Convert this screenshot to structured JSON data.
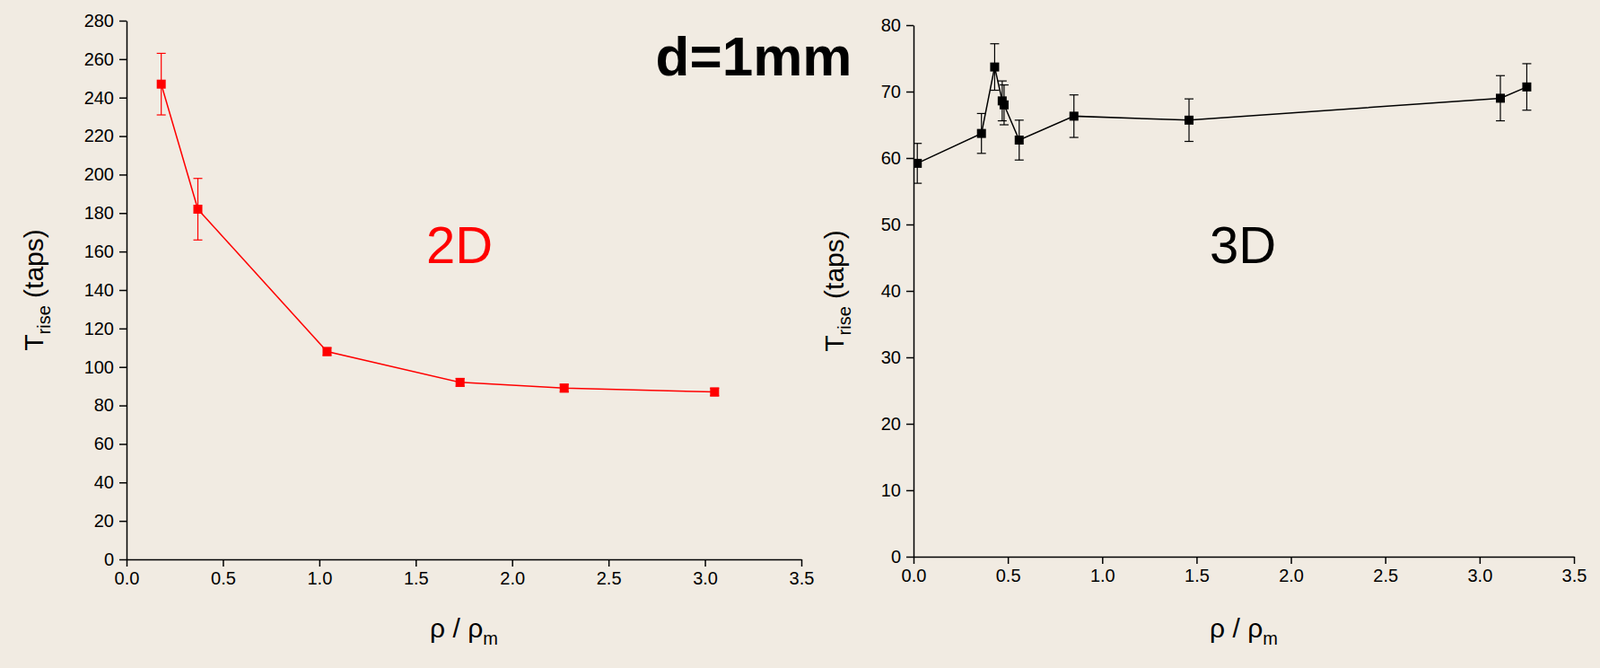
{
  "title": "d=1mm",
  "chart_data": [
    {
      "type": "line",
      "title": "2D",
      "xlabel": [
        {
          "text": "ρ / ρ"
        },
        {
          "text": "m",
          "sub": true
        }
      ],
      "ylabel": [
        {
          "text": "T"
        },
        {
          "text": "rise",
          "sub": true
        },
        {
          "text": " (taps)"
        }
      ],
      "x": [
        0.18,
        0.37,
        1.04,
        1.73,
        2.27,
        3.05
      ],
      "series": [
        {
          "color": "#ff0000",
          "marker": "square",
          "line_style": "solid",
          "values": [
            247,
            182,
            108,
            92,
            89,
            87
          ],
          "errors": [
            16,
            16,
            2,
            2,
            2,
            2
          ]
        }
      ],
      "xlim": [
        0,
        3.5
      ],
      "xticks": [
        {
          "value": 0,
          "label": "0.0"
        },
        0.5,
        {
          "value": 1,
          "label": "1.0"
        },
        1.5,
        {
          "value": 2,
          "label": "2.0"
        },
        2.5,
        {
          "value": 3,
          "label": "3.0"
        },
        3.5
      ],
      "ylim": [
        0,
        280
      ],
      "yticks": [
        0,
        20,
        40,
        60,
        80,
        100,
        120,
        140,
        160,
        180,
        200,
        220,
        240,
        260,
        280
      ],
      "grid": false
    },
    {
      "type": "line",
      "title": "3D",
      "xlabel": [
        {
          "text": "ρ / ρ"
        },
        {
          "text": "m",
          "sub": true
        }
      ],
      "ylabel": [
        {
          "text": "T"
        },
        {
          "text": "rise",
          "sub": true
        },
        {
          "text": " (taps)"
        }
      ],
      "x": [
        0.02,
        0.36,
        0.43,
        0.47,
        0.48,
        0.56,
        0.85,
        1.46,
        3.11,
        3.25
      ],
      "series": [
        {
          "color": "#000000",
          "marker": "square",
          "line_style": "solid",
          "values": [
            59.2,
            63.7,
            73.7,
            68.6,
            68.0,
            62.7,
            66.3,
            65.7,
            69.0,
            70.7
          ],
          "errors": [
            3.0,
            3.0,
            3.5,
            3.0,
            3.0,
            3.0,
            3.2,
            3.2,
            3.4,
            3.5
          ]
        }
      ],
      "xlim": [
        0,
        3.5
      ],
      "xticks": [
        {
          "value": 0,
          "label": "0.0"
        },
        0.5,
        {
          "value": 1,
          "label": "1.0"
        },
        1.5,
        {
          "value": 2,
          "label": "2.0"
        },
        2.5,
        {
          "value": 3,
          "label": "3.0"
        },
        3.5
      ],
      "ylim": [
        0,
        80
      ],
      "yticks": [
        0,
        10,
        20,
        30,
        40,
        50,
        60,
        70,
        80
      ],
      "grid": false
    }
  ]
}
